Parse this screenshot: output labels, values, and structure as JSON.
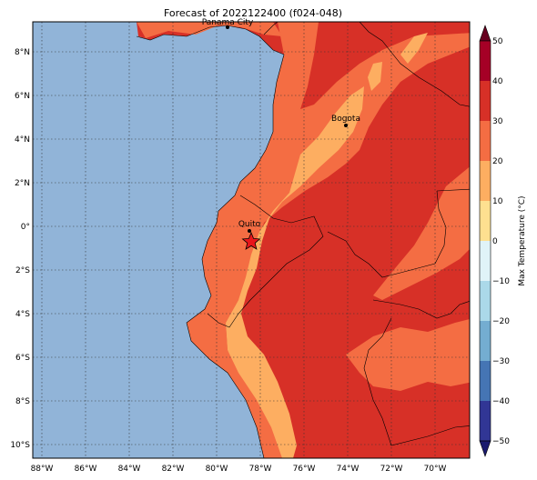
{
  "title": "Forecast of 2022122400 (f024-048)",
  "map": {
    "lon_range": [
      -88.5,
      -68.5
    ],
    "lat_range": [
      -10.5,
      9.5
    ],
    "lon_ticks": [
      "88°W",
      "86°W",
      "84°W",
      "82°W",
      "80°W",
      "78°W",
      "76°W",
      "74°W",
      "72°W",
      "70°W"
    ],
    "lat_ticks": [
      "8°N",
      "6°N",
      "4°N",
      "2°N",
      "0°",
      "2°S",
      "4°S",
      "6°S",
      "8°S",
      "10°S"
    ],
    "ocean_color": "#91b4d8",
    "cities": [
      {
        "name": "Panama City",
        "lon": -79.5,
        "lat": 9.0
      },
      {
        "name": "Bogota",
        "lon": -74.1,
        "lat": 4.6
      },
      {
        "name": "Quito",
        "lon": -78.5,
        "lat": -0.2
      }
    ],
    "star_marker": {
      "lon": -78.5,
      "lat": -0.7,
      "color": "#e8151b"
    }
  },
  "colorbar": {
    "label": "Max Temperature (°C)",
    "ticks": [
      "50",
      "40",
      "30",
      "20",
      "10",
      "0",
      "−10",
      "−20",
      "−30",
      "−40",
      "−50"
    ],
    "colors": [
      "#313695",
      "#4575b4",
      "#74add1",
      "#abd9e9",
      "#e0f3f8",
      "#fee090",
      "#fdae61",
      "#f46d43",
      "#d73027",
      "#a50026"
    ]
  }
}
